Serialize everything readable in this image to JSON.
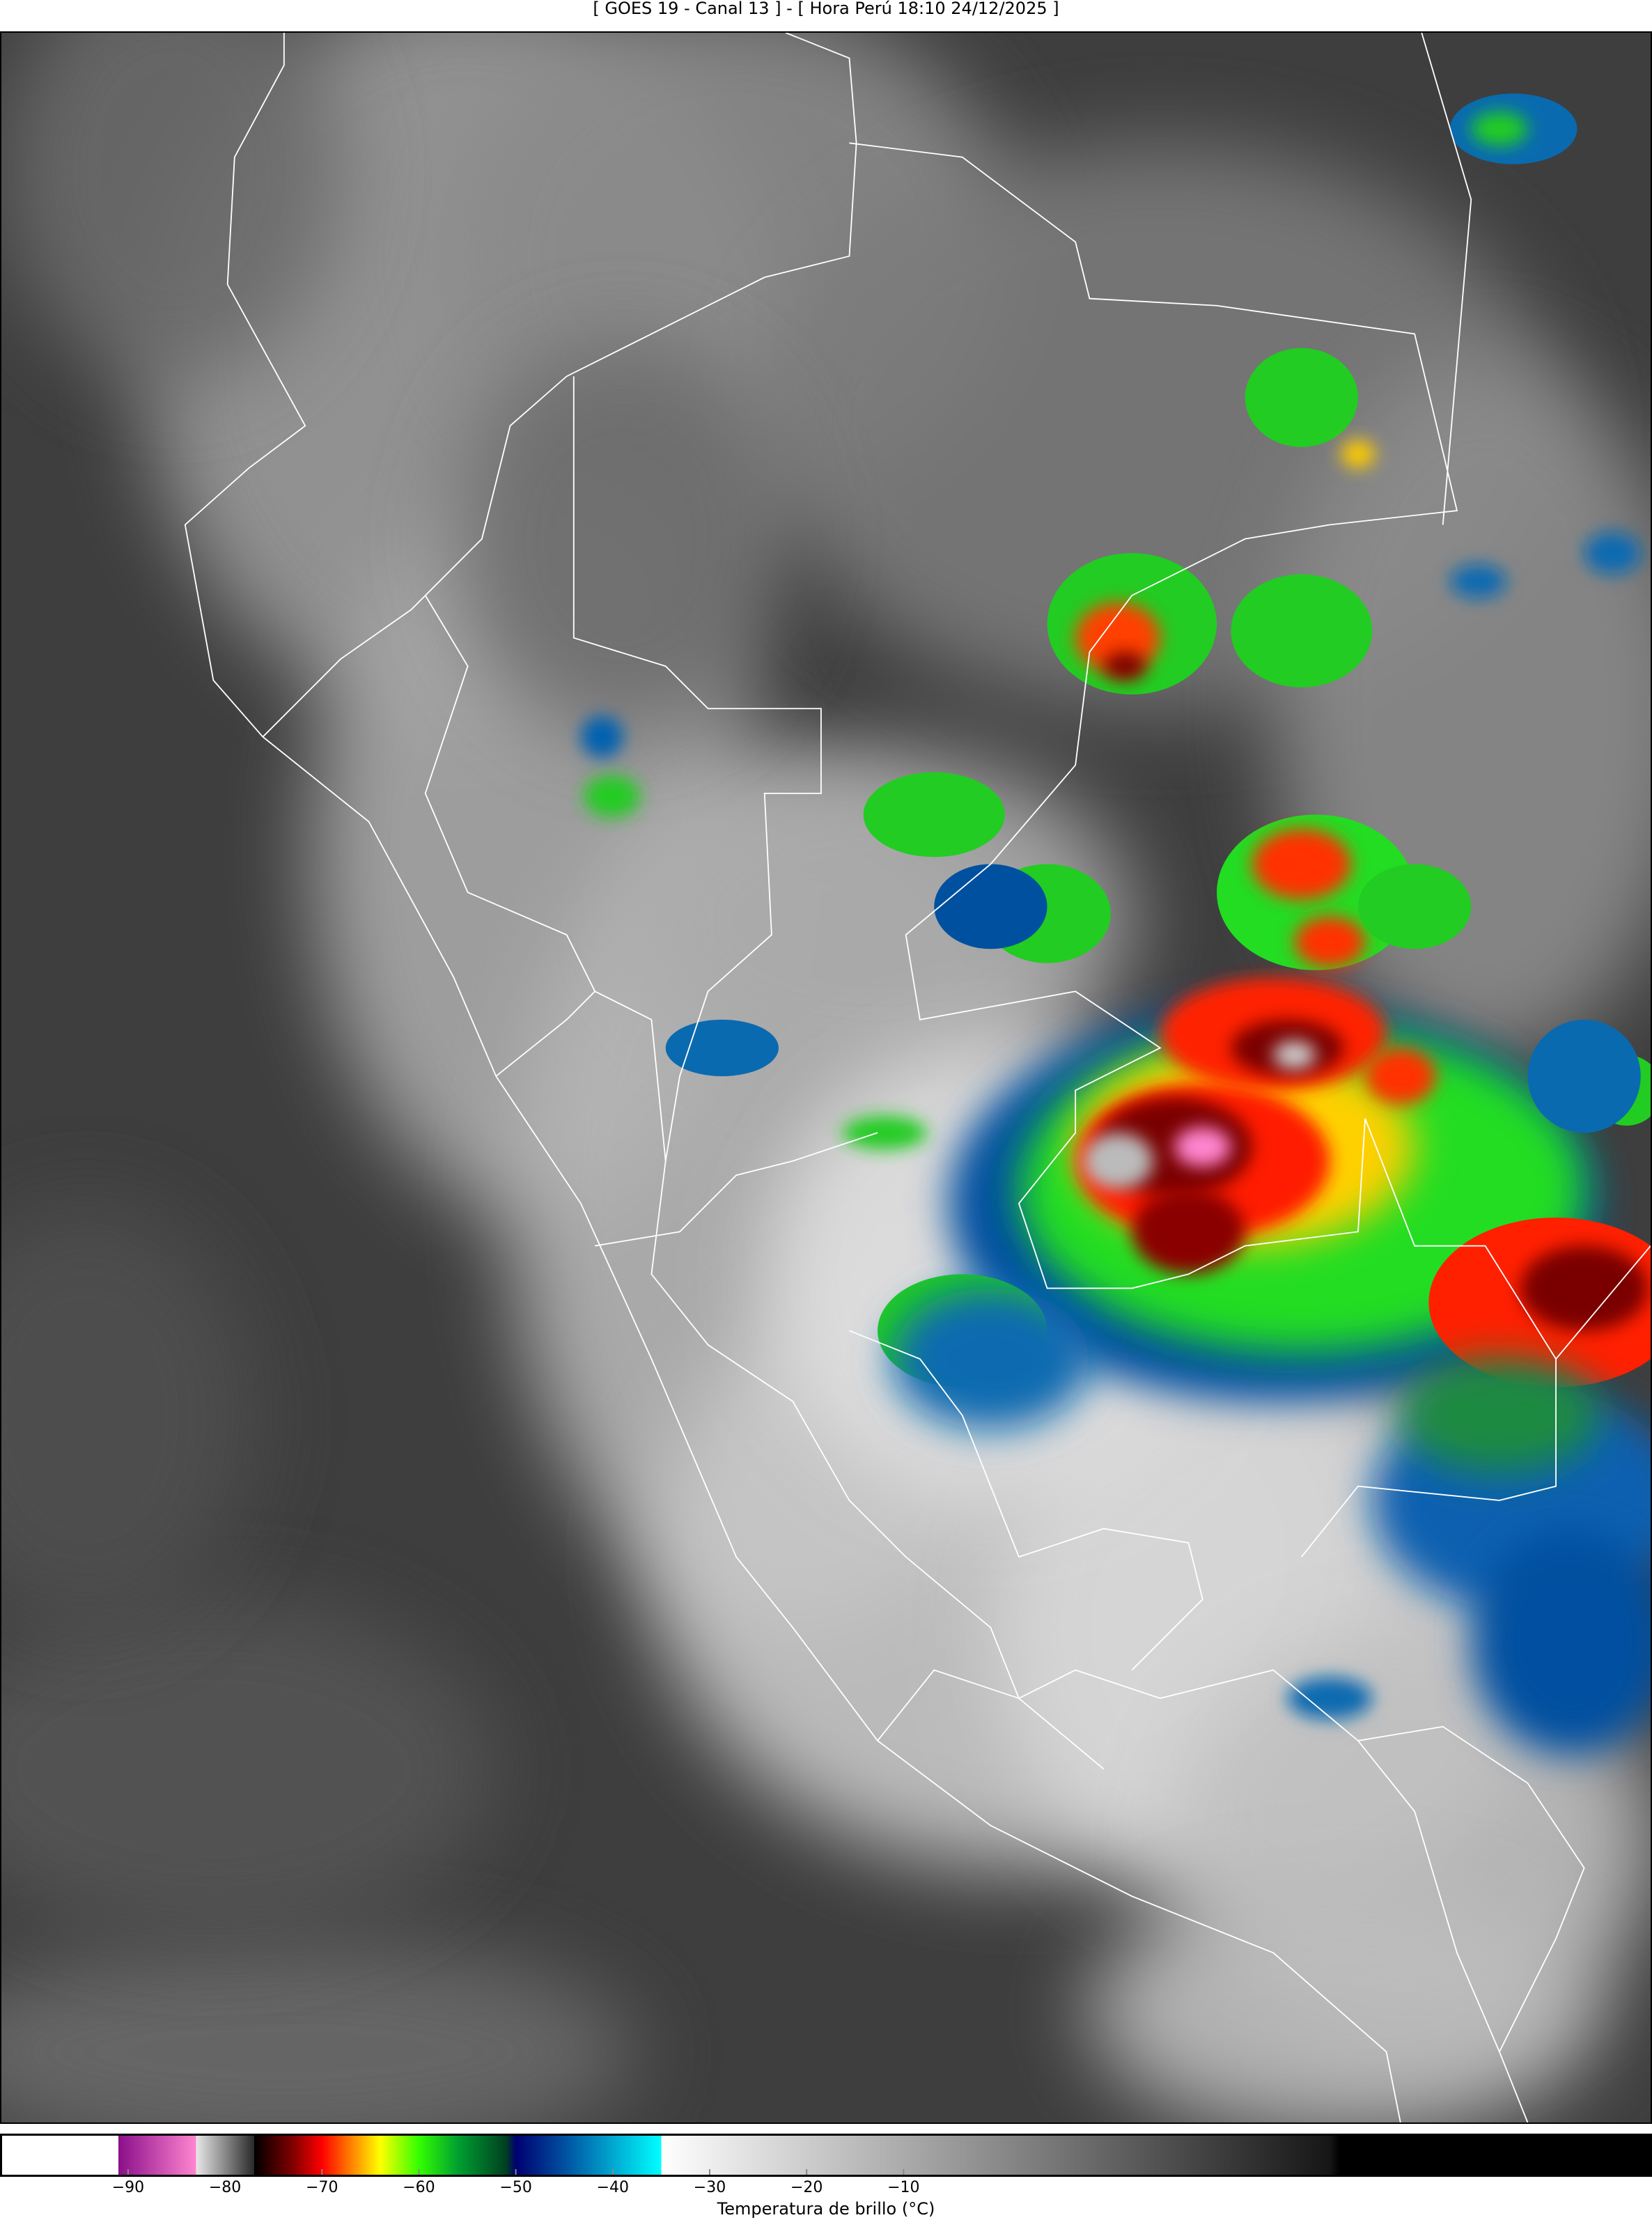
{
  "title": "[ GOES 19 - Canal 13 ] - [ Hora Perú 18:10 24/12/2025 ]",
  "map": {
    "satellite": "GOES 19",
    "channel": "Canal 13",
    "region": "Perú",
    "background_color": "#3e3e3e",
    "border_color": "#ffffff"
  },
  "colorbar": {
    "label": "Temperatura de brillo (°C)",
    "vmin": -103,
    "vmax": 67,
    "ticks": [
      -90,
      -80,
      -70,
      -60,
      -50,
      -40,
      -30,
      -20,
      -10
    ],
    "tick_labels": [
      "−90",
      "−80",
      "−70",
      "−60",
      "−50",
      "−40",
      "−30",
      "−20",
      "−10"
    ],
    "stops": [
      {
        "t": -103,
        "color": "#ffffff"
      },
      {
        "t": -91,
        "color": "#ffffff"
      },
      {
        "t": -91,
        "color": "#8a0f8a"
      },
      {
        "t": -83,
        "color": "#ff85d0"
      },
      {
        "t": -83,
        "color": "#e8e8e8"
      },
      {
        "t": -77,
        "color": "#2a2a2a"
      },
      {
        "t": -77,
        "color": "#000000"
      },
      {
        "t": -73,
        "color": "#800000"
      },
      {
        "t": -70,
        "color": "#ff0000"
      },
      {
        "t": -67,
        "color": "#ff8000"
      },
      {
        "t": -64,
        "color": "#ffff00"
      },
      {
        "t": -60,
        "color": "#33ff00"
      },
      {
        "t": -56,
        "color": "#00a030"
      },
      {
        "t": -51,
        "color": "#004020"
      },
      {
        "t": -50,
        "color": "#000070"
      },
      {
        "t": -45,
        "color": "#0050a0"
      },
      {
        "t": -35,
        "color": "#00ffff"
      },
      {
        "t": -35,
        "color": "#ffffff"
      },
      {
        "t": 34,
        "color": "#161616"
      },
      {
        "t": 35,
        "color": "#000000"
      },
      {
        "t": 67,
        "color": "#000000"
      }
    ]
  }
}
